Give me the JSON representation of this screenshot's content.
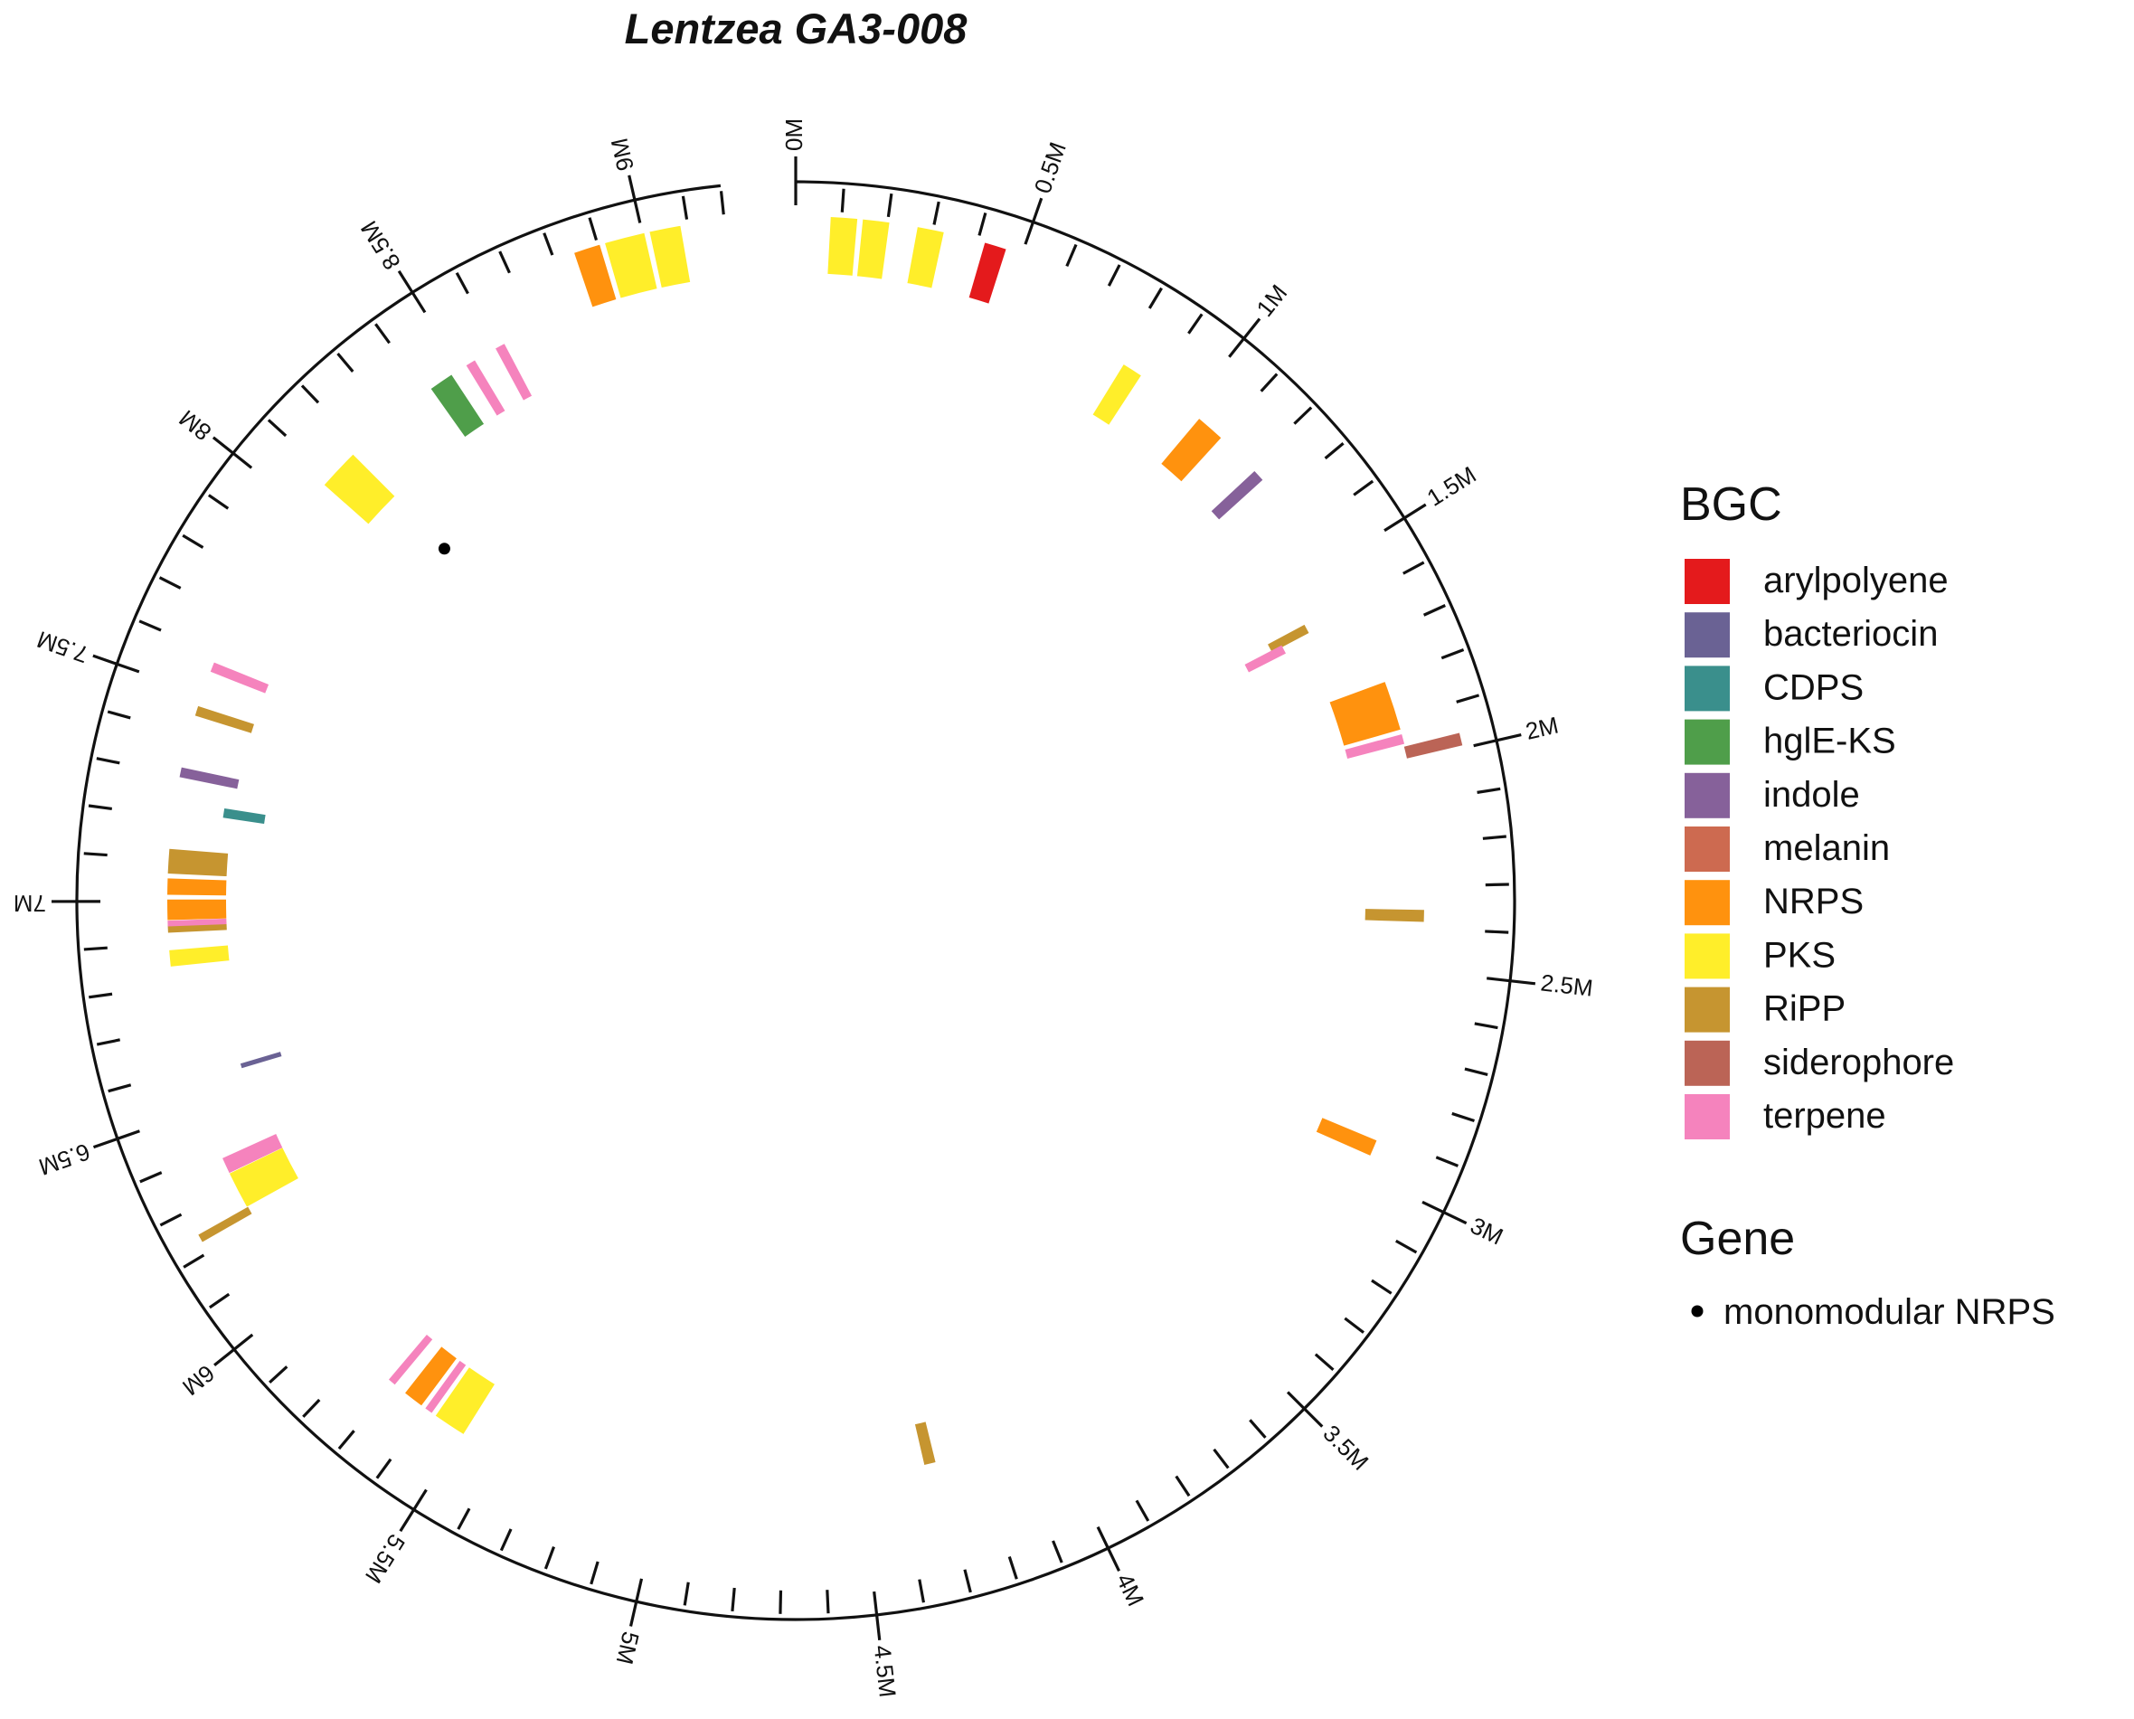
{
  "chart_data": {
    "type": "circular-genome",
    "title": "Lentzea GA3-008",
    "unit": "M",
    "axis_range": [
      0,
      9.18
    ],
    "major_ticks": [
      0,
      0.5,
      1,
      1.5,
      2,
      2.5,
      3,
      3.5,
      4,
      4.5,
      5,
      5.5,
      6,
      6.5,
      7,
      7.5,
      8,
      8.5,
      9
    ],
    "major_tick_labels": [
      "0M",
      "0.5M",
      "1M",
      "1.5M",
      "2M",
      "2.5M",
      "3M",
      "3.5M",
      "4M",
      "4.5M",
      "5M",
      "5.5M",
      "6M",
      "6.5M",
      "7M",
      "7.5M",
      "8M",
      "8.5M",
      "9M"
    ],
    "minor_tick_step": 0.1,
    "legend_bgc_title": "BGC",
    "legend_gene_title": "Gene",
    "bgc_types": [
      {
        "name": "arylpolyene",
        "color": "#e41a1c"
      },
      {
        "name": "bacteriocin",
        "color": "#6a6294"
      },
      {
        "name": "CDPS",
        "color": "#3a8f8c"
      },
      {
        "name": "hglE-KS",
        "color": "#4f9e4a"
      },
      {
        "name": "indole",
        "color": "#86619a"
      },
      {
        "name": "melanin",
        "color": "#cd6a50"
      },
      {
        "name": "NRPS",
        "color": "#ff920e"
      },
      {
        "name": "PKS",
        "color": "#ffee2a"
      },
      {
        "name": "RiPP",
        "color": "#c69530"
      },
      {
        "name": "siderophore",
        "color": "#bb6456"
      },
      {
        "name": "terpene",
        "color": "#f583bd"
      }
    ],
    "genes": [
      {
        "name": "monomodular NRPS",
        "position": 8.17,
        "color": "#000000"
      }
    ],
    "clusters": [
      {
        "type": "PKS",
        "start": 0.08,
        "end": 0.13,
        "track": 0
      },
      {
        "type": "PKS",
        "start": 0.15,
        "end": 0.2,
        "track": 0
      },
      {
        "type": "PKS",
        "start": 0.27,
        "end": 0.32,
        "track": 0
      },
      {
        "type": "arylpolyene",
        "start": 0.42,
        "end": 0.46,
        "track": 0
      },
      {
        "type": "PKS",
        "start": 0.82,
        "end": 0.86,
        "track": 1
      },
      {
        "type": "NRPS",
        "start": 1.04,
        "end": 1.1,
        "track": 1
      },
      {
        "type": "indole",
        "start": 1.22,
        "end": 1.24,
        "track": 1
      },
      {
        "type": "RiPP",
        "start": 1.6,
        "end": 1.615,
        "track": 2
      },
      {
        "type": "terpene",
        "start": 1.62,
        "end": 1.635,
        "track": 3
      },
      {
        "type": "NRPS",
        "start": 1.81,
        "end": 1.92,
        "track": 1
      },
      {
        "type": "terpene",
        "start": 1.94,
        "end": 1.955,
        "track": 1
      },
      {
        "type": "siderophore",
        "start": 1.97,
        "end": 1.99,
        "track": 0
      },
      {
        "type": "RiPP",
        "start": 2.36,
        "end": 2.38,
        "track": 1
      },
      {
        "type": "NRPS",
        "start": 2.92,
        "end": 2.95,
        "track": 1
      },
      {
        "type": "RiPP",
        "start": 4.31,
        "end": 4.33,
        "track": 2
      },
      {
        "type": "PKS",
        "start": 5.5,
        "end": 5.57,
        "track": 1
      },
      {
        "type": "terpene",
        "start": 5.59,
        "end": 5.6,
        "track": 1
      },
      {
        "type": "NRPS",
        "start": 5.62,
        "end": 5.66,
        "track": 1
      },
      {
        "type": "terpene",
        "start": 5.7,
        "end": 5.71,
        "track": 1
      },
      {
        "type": "RiPP",
        "start": 6.23,
        "end": 6.24,
        "track": 0
      },
      {
        "type": "PKS",
        "start": 6.25,
        "end": 6.33,
        "track": 1
      },
      {
        "type": "terpene",
        "start": 6.34,
        "end": 6.37,
        "track": 1
      },
      {
        "type": "bacteriocin",
        "start": 6.57,
        "end": 6.573,
        "track": 2
      },
      {
        "type": "PKS",
        "start": 6.85,
        "end": 6.88,
        "track": 1
      },
      {
        "type": "RiPP",
        "start": 6.93,
        "end": 6.94,
        "track": 1
      },
      {
        "type": "terpene",
        "start": 6.945,
        "end": 6.95,
        "track": 1
      },
      {
        "type": "NRPS",
        "start": 6.96,
        "end": 7.0,
        "track": 1
      },
      {
        "type": "NRPS",
        "start": 7.02,
        "end": 7.05,
        "track": 1
      },
      {
        "type": "RiPP",
        "start": 7.07,
        "end": 7.12,
        "track": 1
      },
      {
        "type": "CDPS",
        "start": 7.22,
        "end": 7.235,
        "track": 2
      },
      {
        "type": "indole",
        "start": 7.3,
        "end": 7.315,
        "track": 1
      },
      {
        "type": "RiPP",
        "start": 7.45,
        "end": 7.465,
        "track": 1
      },
      {
        "type": "terpene",
        "start": 7.56,
        "end": 7.575,
        "track": 1
      },
      {
        "type": "PKS",
        "start": 8.08,
        "end": 8.17,
        "track": 1
      },
      {
        "type": "hglE-KS",
        "start": 8.42,
        "end": 8.47,
        "track": 1
      },
      {
        "type": "terpene",
        "start": 8.52,
        "end": 8.535,
        "track": 1
      },
      {
        "type": "terpene",
        "start": 8.6,
        "end": 8.615,
        "track": 1
      },
      {
        "type": "NRPS",
        "start": 8.85,
        "end": 8.9,
        "track": 0
      },
      {
        "type": "PKS",
        "start": 8.92,
        "end": 9.0,
        "track": 0
      },
      {
        "type": "PKS",
        "start": 9.02,
        "end": 9.08,
        "track": 0
      }
    ]
  }
}
